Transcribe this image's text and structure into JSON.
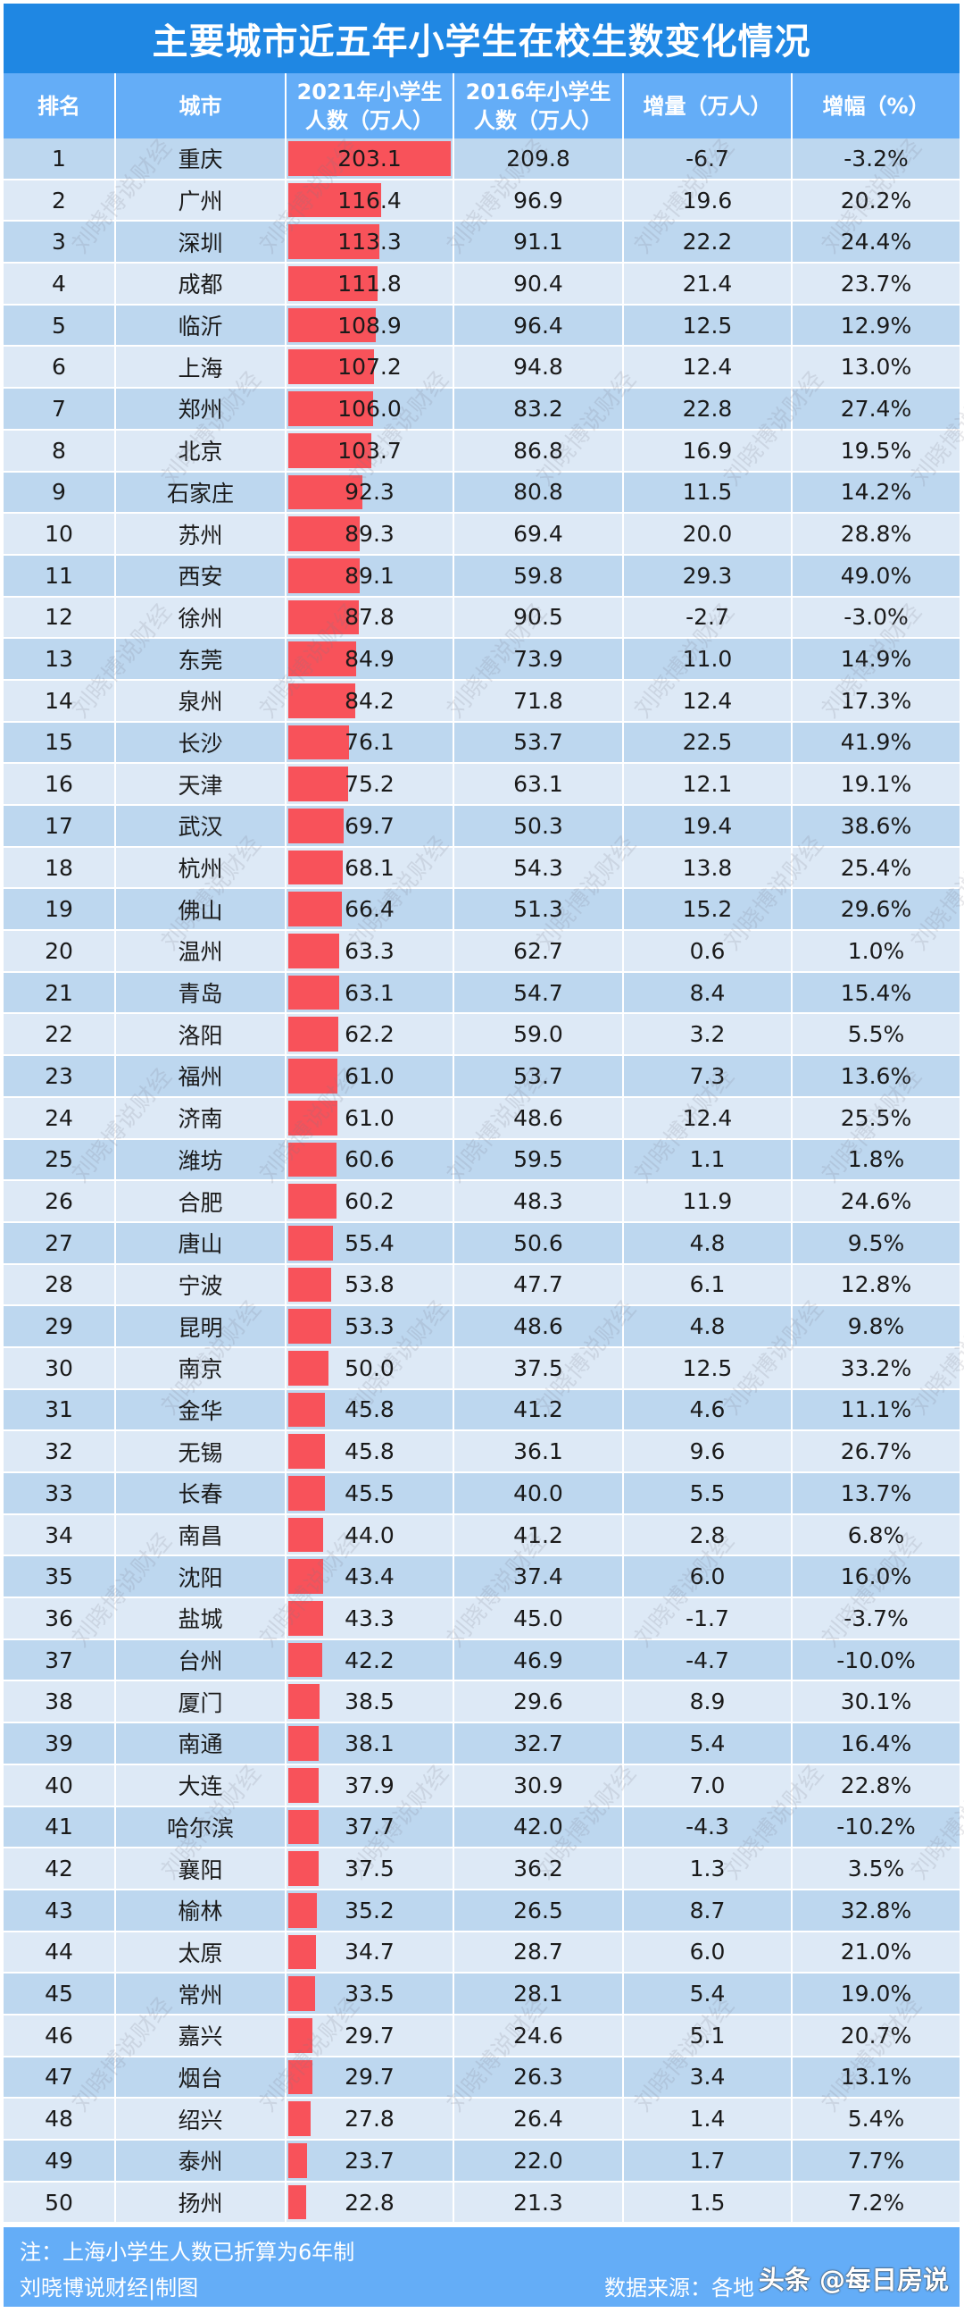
{
  "title": "主要城市近五年小学生在校生数变化情况",
  "headers": [
    "排名",
    "城市",
    "2021年小学生\n人数（万人）",
    "2016年小学生\n人数（万人）",
    "增量（万人）",
    "增幅（%）"
  ],
  "colors": {
    "title_bg": "#1f87e3",
    "header_bg": "#64adf7",
    "row_dark": "#bdd7ef",
    "row_light": "#dde9f6",
    "bar": "#f8525a"
  },
  "rows": [
    {
      "rank": "1",
      "city": "重庆",
      "y2021": "203.1",
      "y2016": "209.8",
      "delta": "-6.7",
      "pct": "-3.2%"
    },
    {
      "rank": "2",
      "city": "广州",
      "y2021": "116.4",
      "y2016": "96.9",
      "delta": "19.6",
      "pct": "20.2%"
    },
    {
      "rank": "3",
      "city": "深圳",
      "y2021": "113.3",
      "y2016": "91.1",
      "delta": "22.2",
      "pct": "24.4%"
    },
    {
      "rank": "4",
      "city": "成都",
      "y2021": "111.8",
      "y2016": "90.4",
      "delta": "21.4",
      "pct": "23.7%"
    },
    {
      "rank": "5",
      "city": "临沂",
      "y2021": "108.9",
      "y2016": "96.4",
      "delta": "12.5",
      "pct": "12.9%"
    },
    {
      "rank": "6",
      "city": "上海",
      "y2021": "107.2",
      "y2016": "94.8",
      "delta": "12.4",
      "pct": "13.0%"
    },
    {
      "rank": "7",
      "city": "郑州",
      "y2021": "106.0",
      "y2016": "83.2",
      "delta": "22.8",
      "pct": "27.4%"
    },
    {
      "rank": "8",
      "city": "北京",
      "y2021": "103.7",
      "y2016": "86.8",
      "delta": "16.9",
      "pct": "19.5%"
    },
    {
      "rank": "9",
      "city": "石家庄",
      "y2021": "92.3",
      "y2016": "80.8",
      "delta": "11.5",
      "pct": "14.2%"
    },
    {
      "rank": "10",
      "city": "苏州",
      "y2021": "89.3",
      "y2016": "69.4",
      "delta": "20.0",
      "pct": "28.8%"
    },
    {
      "rank": "11",
      "city": "西安",
      "y2021": "89.1",
      "y2016": "59.8",
      "delta": "29.3",
      "pct": "49.0%"
    },
    {
      "rank": "12",
      "city": "徐州",
      "y2021": "87.8",
      "y2016": "90.5",
      "delta": "-2.7",
      "pct": "-3.0%"
    },
    {
      "rank": "13",
      "city": "东莞",
      "y2021": "84.9",
      "y2016": "73.9",
      "delta": "11.0",
      "pct": "14.9%"
    },
    {
      "rank": "14",
      "city": "泉州",
      "y2021": "84.2",
      "y2016": "71.8",
      "delta": "12.4",
      "pct": "17.3%"
    },
    {
      "rank": "15",
      "city": "长沙",
      "y2021": "76.1",
      "y2016": "53.7",
      "delta": "22.5",
      "pct": "41.9%"
    },
    {
      "rank": "16",
      "city": "天津",
      "y2021": "75.2",
      "y2016": "63.1",
      "delta": "12.1",
      "pct": "19.1%"
    },
    {
      "rank": "17",
      "city": "武汉",
      "y2021": "69.7",
      "y2016": "50.3",
      "delta": "19.4",
      "pct": "38.6%"
    },
    {
      "rank": "18",
      "city": "杭州",
      "y2021": "68.1",
      "y2016": "54.3",
      "delta": "13.8",
      "pct": "25.4%"
    },
    {
      "rank": "19",
      "city": "佛山",
      "y2021": "66.4",
      "y2016": "51.3",
      "delta": "15.2",
      "pct": "29.6%"
    },
    {
      "rank": "20",
      "city": "温州",
      "y2021": "63.3",
      "y2016": "62.7",
      "delta": "0.6",
      "pct": "1.0%"
    },
    {
      "rank": "21",
      "city": "青岛",
      "y2021": "63.1",
      "y2016": "54.7",
      "delta": "8.4",
      "pct": "15.4%"
    },
    {
      "rank": "22",
      "city": "洛阳",
      "y2021": "62.2",
      "y2016": "59.0",
      "delta": "3.2",
      "pct": "5.5%"
    },
    {
      "rank": "23",
      "city": "福州",
      "y2021": "61.0",
      "y2016": "53.7",
      "delta": "7.3",
      "pct": "13.6%"
    },
    {
      "rank": "24",
      "city": "济南",
      "y2021": "61.0",
      "y2016": "48.6",
      "delta": "12.4",
      "pct": "25.5%"
    },
    {
      "rank": "25",
      "city": "潍坊",
      "y2021": "60.6",
      "y2016": "59.5",
      "delta": "1.1",
      "pct": "1.8%"
    },
    {
      "rank": "26",
      "city": "合肥",
      "y2021": "60.2",
      "y2016": "48.3",
      "delta": "11.9",
      "pct": "24.6%"
    },
    {
      "rank": "27",
      "city": "唐山",
      "y2021": "55.4",
      "y2016": "50.6",
      "delta": "4.8",
      "pct": "9.5%"
    },
    {
      "rank": "28",
      "city": "宁波",
      "y2021": "53.8",
      "y2016": "47.7",
      "delta": "6.1",
      "pct": "12.8%"
    },
    {
      "rank": "29",
      "city": "昆明",
      "y2021": "53.3",
      "y2016": "48.6",
      "delta": "4.8",
      "pct": "9.8%"
    },
    {
      "rank": "30",
      "city": "南京",
      "y2021": "50.0",
      "y2016": "37.5",
      "delta": "12.5",
      "pct": "33.2%"
    },
    {
      "rank": "31",
      "city": "金华",
      "y2021": "45.8",
      "y2016": "41.2",
      "delta": "4.6",
      "pct": "11.1%"
    },
    {
      "rank": "32",
      "city": "无锡",
      "y2021": "45.8",
      "y2016": "36.1",
      "delta": "9.6",
      "pct": "26.7%"
    },
    {
      "rank": "33",
      "city": "长春",
      "y2021": "45.5",
      "y2016": "40.0",
      "delta": "5.5",
      "pct": "13.7%"
    },
    {
      "rank": "34",
      "city": "南昌",
      "y2021": "44.0",
      "y2016": "41.2",
      "delta": "2.8",
      "pct": "6.8%"
    },
    {
      "rank": "35",
      "city": "沈阳",
      "y2021": "43.4",
      "y2016": "37.4",
      "delta": "6.0",
      "pct": "16.0%"
    },
    {
      "rank": "36",
      "city": "盐城",
      "y2021": "43.3",
      "y2016": "45.0",
      "delta": "-1.7",
      "pct": "-3.7%"
    },
    {
      "rank": "37",
      "city": "台州",
      "y2021": "42.2",
      "y2016": "46.9",
      "delta": "-4.7",
      "pct": "-10.0%"
    },
    {
      "rank": "38",
      "city": "厦门",
      "y2021": "38.5",
      "y2016": "29.6",
      "delta": "8.9",
      "pct": "30.1%"
    },
    {
      "rank": "39",
      "city": "南通",
      "y2021": "38.1",
      "y2016": "32.7",
      "delta": "5.4",
      "pct": "16.4%"
    },
    {
      "rank": "40",
      "city": "大连",
      "y2021": "37.9",
      "y2016": "30.9",
      "delta": "7.0",
      "pct": "22.8%"
    },
    {
      "rank": "41",
      "city": "哈尔滨",
      "y2021": "37.7",
      "y2016": "42.0",
      "delta": "-4.3",
      "pct": "-10.2%"
    },
    {
      "rank": "42",
      "city": "襄阳",
      "y2021": "37.5",
      "y2016": "36.2",
      "delta": "1.3",
      "pct": "3.5%"
    },
    {
      "rank": "43",
      "city": "榆林",
      "y2021": "35.2",
      "y2016": "26.5",
      "delta": "8.7",
      "pct": "32.8%"
    },
    {
      "rank": "44",
      "city": "太原",
      "y2021": "34.7",
      "y2016": "28.7",
      "delta": "6.0",
      "pct": "21.0%"
    },
    {
      "rank": "45",
      "city": "常州",
      "y2021": "33.5",
      "y2016": "28.1",
      "delta": "5.4",
      "pct": "19.0%"
    },
    {
      "rank": "46",
      "city": "嘉兴",
      "y2021": "29.7",
      "y2016": "24.6",
      "delta": "5.1",
      "pct": "20.7%"
    },
    {
      "rank": "47",
      "city": "烟台",
      "y2021": "29.7",
      "y2016": "26.3",
      "delta": "3.4",
      "pct": "13.1%"
    },
    {
      "rank": "48",
      "city": "绍兴",
      "y2021": "27.8",
      "y2016": "26.4",
      "delta": "1.4",
      "pct": "5.4%"
    },
    {
      "rank": "49",
      "city": "泰州",
      "y2021": "23.7",
      "y2016": "22.0",
      "delta": "1.7",
      "pct": "7.7%"
    },
    {
      "rank": "50",
      "city": "扬州",
      "y2021": "22.8",
      "y2016": "21.3",
      "delta": "1.5",
      "pct": "7.2%"
    }
  ],
  "footer": {
    "note": "注：上海小学生人数已折算为6年制",
    "credit": "刘晓博说财经|制图",
    "source": "数据来源：各地",
    "platform_watermark": "头条 @每日房说"
  },
  "watermark_text": "刘晓博说财经",
  "chart_data": {
    "type": "table",
    "title": "主要城市近五年小学生在校生数变化情况",
    "columns": [
      "排名",
      "城市",
      "2021年小学生人数（万人）",
      "2016年小学生人数（万人）",
      "增量（万人）",
      "增幅（%）"
    ],
    "bar_column": "2021年小学生人数（万人）",
    "categories": [
      "重庆",
      "广州",
      "深圳",
      "成都",
      "临沂",
      "上海",
      "郑州",
      "北京",
      "石家庄",
      "苏州",
      "西安",
      "徐州",
      "东莞",
      "泉州",
      "长沙",
      "天津",
      "武汉",
      "杭州",
      "佛山",
      "温州",
      "青岛",
      "洛阳",
      "福州",
      "济南",
      "潍坊",
      "合肥",
      "唐山",
      "宁波",
      "昆明",
      "南京",
      "金华",
      "无锡",
      "长春",
      "南昌",
      "沈阳",
      "盐城",
      "台州",
      "厦门",
      "南通",
      "大连",
      "哈尔滨",
      "襄阳",
      "榆林",
      "太原",
      "常州",
      "嘉兴",
      "烟台",
      "绍兴",
      "泰州",
      "扬州"
    ],
    "series": [
      {
        "name": "2021年小学生人数（万人）",
        "values": [
          203.1,
          116.4,
          113.3,
          111.8,
          108.9,
          107.2,
          106.0,
          103.7,
          92.3,
          89.3,
          89.1,
          87.8,
          84.9,
          84.2,
          76.1,
          75.2,
          69.7,
          68.1,
          66.4,
          63.3,
          63.1,
          62.2,
          61.0,
          61.0,
          60.6,
          60.2,
          55.4,
          53.8,
          53.3,
          50.0,
          45.8,
          45.8,
          45.5,
          44.0,
          43.4,
          43.3,
          42.2,
          38.5,
          38.1,
          37.9,
          37.7,
          37.5,
          35.2,
          34.7,
          33.5,
          29.7,
          29.7,
          27.8,
          23.7,
          22.8
        ]
      },
      {
        "name": "2016年小学生人数（万人）",
        "values": [
          209.8,
          96.9,
          91.1,
          90.4,
          96.4,
          94.8,
          83.2,
          86.8,
          80.8,
          69.4,
          59.8,
          90.5,
          73.9,
          71.8,
          53.7,
          63.1,
          50.3,
          54.3,
          51.3,
          62.7,
          54.7,
          59.0,
          53.7,
          48.6,
          59.5,
          48.3,
          50.6,
          47.7,
          48.6,
          37.5,
          41.2,
          36.1,
          40.0,
          41.2,
          37.4,
          45.0,
          46.9,
          29.6,
          32.7,
          30.9,
          42.0,
          36.2,
          26.5,
          28.7,
          28.1,
          24.6,
          26.3,
          26.4,
          22.0,
          21.3
        ]
      },
      {
        "name": "增量（万人）",
        "values": [
          -6.7,
          19.6,
          22.2,
          21.4,
          12.5,
          12.4,
          22.8,
          16.9,
          11.5,
          20.0,
          29.3,
          -2.7,
          11.0,
          12.4,
          22.5,
          12.1,
          19.4,
          13.8,
          15.2,
          0.6,
          8.4,
          3.2,
          7.3,
          12.4,
          1.1,
          11.9,
          4.8,
          6.1,
          4.8,
          12.5,
          4.6,
          9.6,
          5.5,
          2.8,
          6.0,
          -1.7,
          -4.7,
          8.9,
          5.4,
          7.0,
          -4.3,
          1.3,
          8.7,
          6.0,
          5.4,
          5.1,
          3.4,
          1.4,
          1.7,
          1.5
        ]
      },
      {
        "name": "增幅（%）",
        "values": [
          -3.2,
          20.2,
          24.4,
          23.7,
          12.9,
          13.0,
          27.4,
          19.5,
          14.2,
          28.8,
          49.0,
          -3.0,
          14.9,
          17.3,
          41.9,
          19.1,
          38.6,
          25.4,
          29.6,
          1.0,
          15.4,
          5.5,
          13.6,
          25.5,
          1.8,
          24.6,
          9.5,
          12.8,
          9.8,
          33.2,
          11.1,
          26.7,
          13.7,
          6.8,
          16.0,
          -3.7,
          -10.0,
          30.1,
          16.4,
          22.8,
          -10.2,
          3.5,
          32.8,
          21.0,
          19.0,
          20.7,
          13.1,
          5.4,
          7.7,
          7.2
        ]
      }
    ],
    "xlabel": "",
    "ylabel": "",
    "notes": [
      "注：上海小学生人数已折算为6年制",
      "刘晓博说财经|制图",
      "数据来源：各地"
    ]
  }
}
